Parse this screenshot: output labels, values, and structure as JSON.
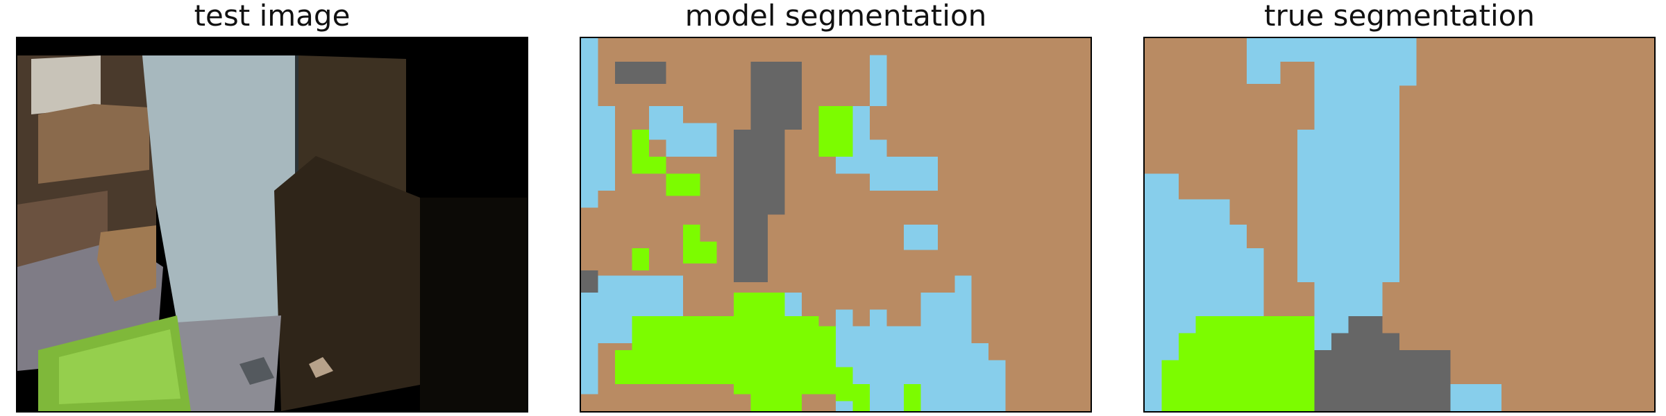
{
  "panels": {
    "test_image": {
      "title": "test image"
    },
    "model_segmentation": {
      "title": "model segmentation"
    },
    "true_segmentation": {
      "title": "true segmentation"
    }
  },
  "legend_colors": {
    "brown": "#b98b63",
    "light_blue": "#87ceeb",
    "gray": "#666666",
    "green": "#7cfc00"
  }
}
